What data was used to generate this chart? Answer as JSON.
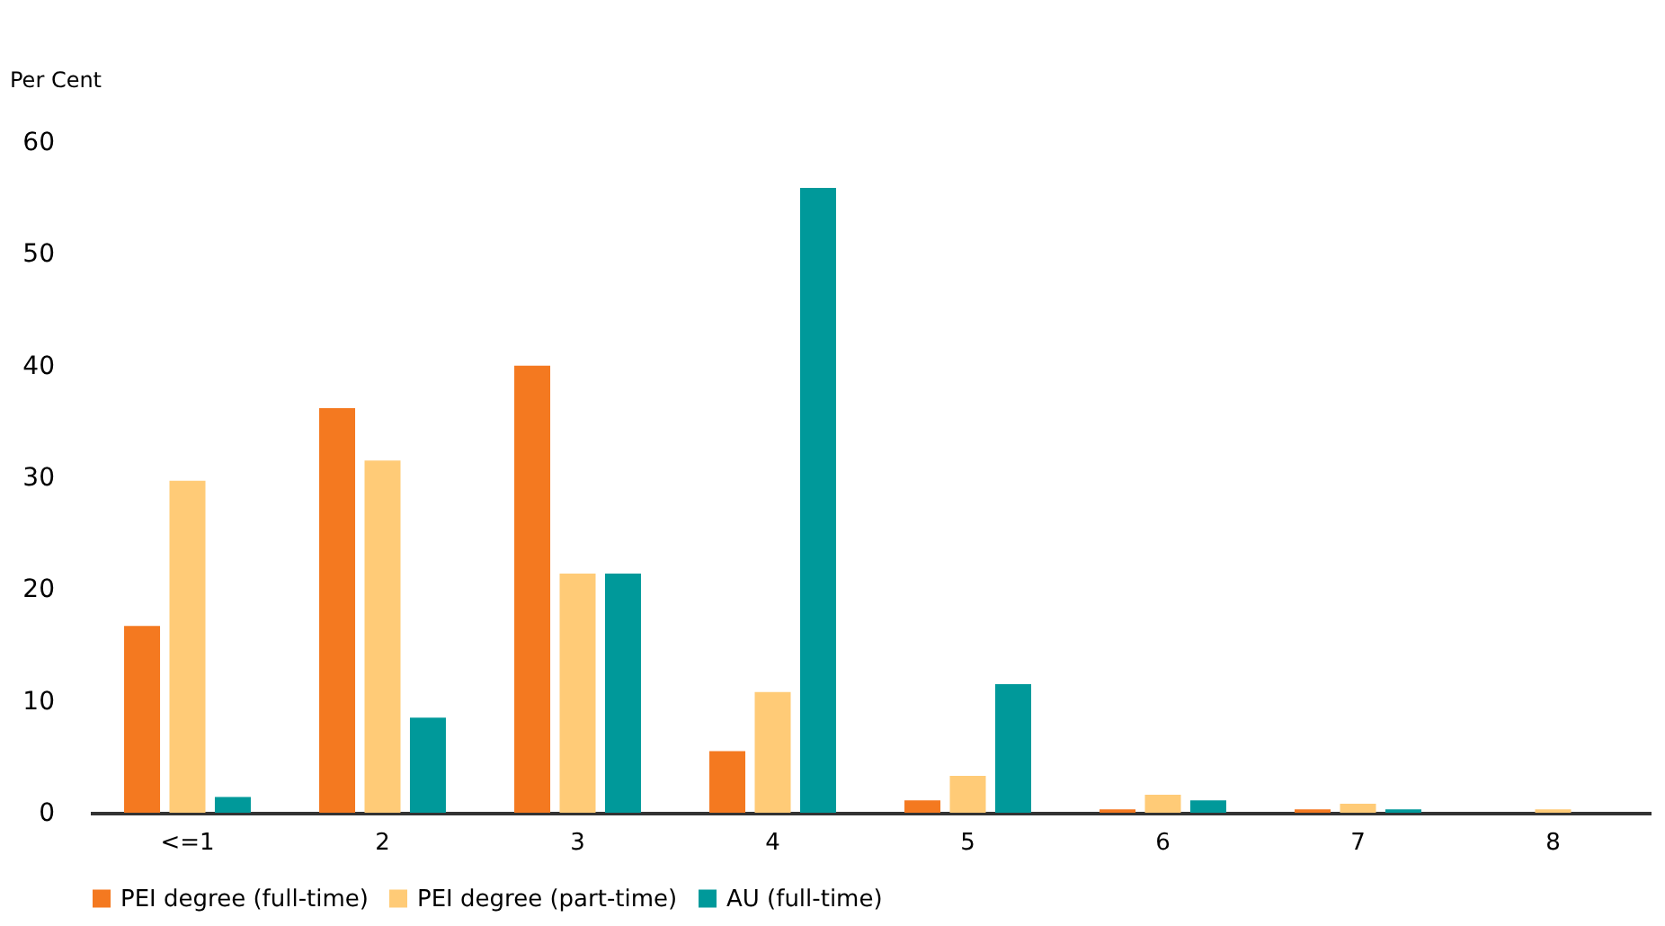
{
  "chart_data": {
    "type": "bar",
    "ylabel": "Per Cent",
    "categories": [
      "<=1",
      "2",
      "3",
      "4",
      "5",
      "6",
      "7",
      "8"
    ],
    "series": [
      {
        "name": "PEI degree (full-time)",
        "color": "#f47920",
        "values": [
          16.7,
          36.2,
          40.0,
          5.5,
          1.1,
          0.3,
          0.3,
          0
        ]
      },
      {
        "name": "PEI degree (part-time)",
        "color": "#ffcb77",
        "values": [
          29.7,
          31.5,
          21.4,
          10.8,
          3.3,
          1.6,
          0.8,
          0.3
        ]
      },
      {
        "name": "AU (full-time)",
        "color": "#00999a",
        "values": [
          1.4,
          8.5,
          21.4,
          55.9,
          11.5,
          1.1,
          0.3,
          0
        ]
      }
    ],
    "ylim": [
      0,
      60
    ],
    "yticks": [
      0,
      10,
      20,
      30,
      40,
      50,
      60
    ],
    "grid": false,
    "legend": "bottom"
  }
}
